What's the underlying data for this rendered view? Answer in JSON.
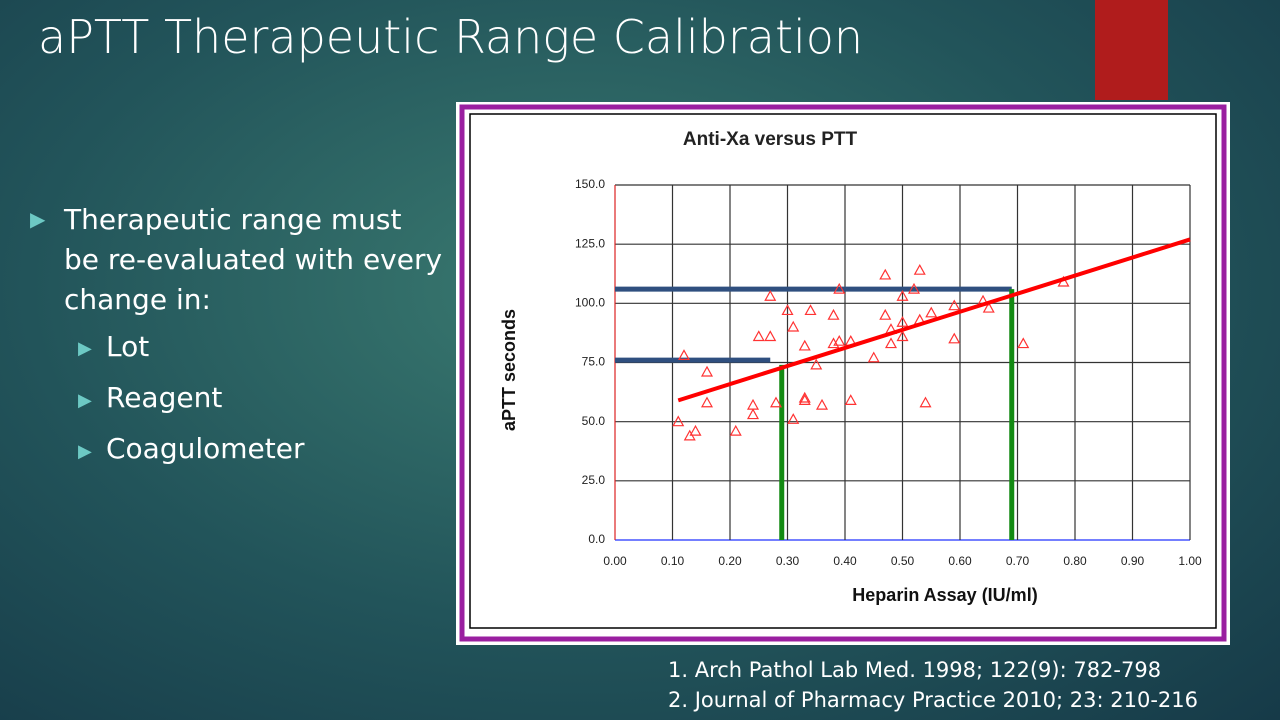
{
  "slide": {
    "title": "aPTT Therapeutic Range Calibration",
    "bullet": "Therapeutic range must be re-evaluated with every change in:",
    "sub_bullets": [
      "Lot",
      "Reagent",
      "Coagulometer"
    ],
    "references": [
      "1.  Arch Pathol Lab Med.  1998; 122(9):  782-798",
      "2.  Journal of Pharmacy Practice 2010; 23: 210-216"
    ]
  },
  "chart_data": {
    "type": "scatter",
    "title": "Anti-Xa versus PTT",
    "x_label": "Heparin Assay (IU/ml)",
    "y_label": "aPTT seconds",
    "color": "#ff3333",
    "x": [
      0.11,
      0.12,
      0.16,
      0.16,
      0.13,
      0.14,
      0.21,
      0.24,
      0.24,
      0.25,
      0.27,
      0.27,
      0.28,
      0.3,
      0.31,
      0.31,
      0.33,
      0.33,
      0.33,
      0.34,
      0.35,
      0.36,
      0.38,
      0.38,
      0.39,
      0.39,
      0.41,
      0.41,
      0.45,
      0.47,
      0.47,
      0.48,
      0.48,
      0.5,
      0.5,
      0.5,
      0.52,
      0.53,
      0.53,
      0.54,
      0.55,
      0.59,
      0.59,
      0.64,
      0.65,
      0.71,
      0.78
    ],
    "values": [
      50,
      78,
      71,
      58,
      44,
      46,
      46,
      57,
      53,
      86,
      86,
      103,
      58,
      97,
      90,
      51,
      82,
      60,
      59,
      97,
      74,
      57,
      95,
      83,
      106,
      84,
      84,
      59,
      77,
      112,
      95,
      83,
      89,
      92,
      103,
      86,
      106,
      114,
      93,
      58,
      96,
      99,
      85,
      101,
      98,
      83,
      109
    ],
    "trendline": {
      "color": "#ff0000",
      "x": [
        0.11,
        1.0
      ],
      "y": [
        59,
        127
      ]
    },
    "range_lines": [
      {
        "color": "#2f4f7f",
        "x": [
          0,
          0.69
        ],
        "y": [
          106,
          106
        ]
      },
      {
        "color": "#2f4f7f",
        "x": [
          0,
          0.27
        ],
        "y": [
          76,
          76
        ]
      },
      {
        "color": "#138a13",
        "x": [
          0.29,
          0.29
        ],
        "y": [
          0,
          74
        ]
      },
      {
        "color": "#138a13",
        "x": [
          0.69,
          0.69
        ],
        "y": [
          0,
          106
        ]
      }
    ],
    "xlim": [
      0,
      1.0
    ],
    "ylim": [
      0,
      150
    ],
    "xticks": [
      {
        "value": 0,
        "label": "0.00"
      },
      {
        "value": 0.1,
        "label": "0.10"
      },
      {
        "value": 0.2,
        "label": "0.20"
      },
      {
        "value": 0.3,
        "label": "0.30"
      },
      {
        "value": 0.4,
        "label": "0.40"
      },
      {
        "value": 0.5,
        "label": "0.50"
      },
      {
        "value": 0.6,
        "label": "0.60"
      },
      {
        "value": 0.7,
        "label": "0.70"
      },
      {
        "value": 0.8,
        "label": "0.80"
      },
      {
        "value": 0.9,
        "label": "0.90"
      },
      {
        "value": 1.0,
        "label": "1.00"
      }
    ],
    "yticks": [
      {
        "value": 0,
        "label": "0.0"
      },
      {
        "value": 25,
        "label": "25.0"
      },
      {
        "value": 50,
        "label": "50.0"
      },
      {
        "value": 75,
        "label": "75.0"
      },
      {
        "value": 100,
        "label": "100.0"
      },
      {
        "value": 125,
        "label": "125.0"
      },
      {
        "value": 150,
        "label": "150.0"
      }
    ],
    "grid": true
  }
}
